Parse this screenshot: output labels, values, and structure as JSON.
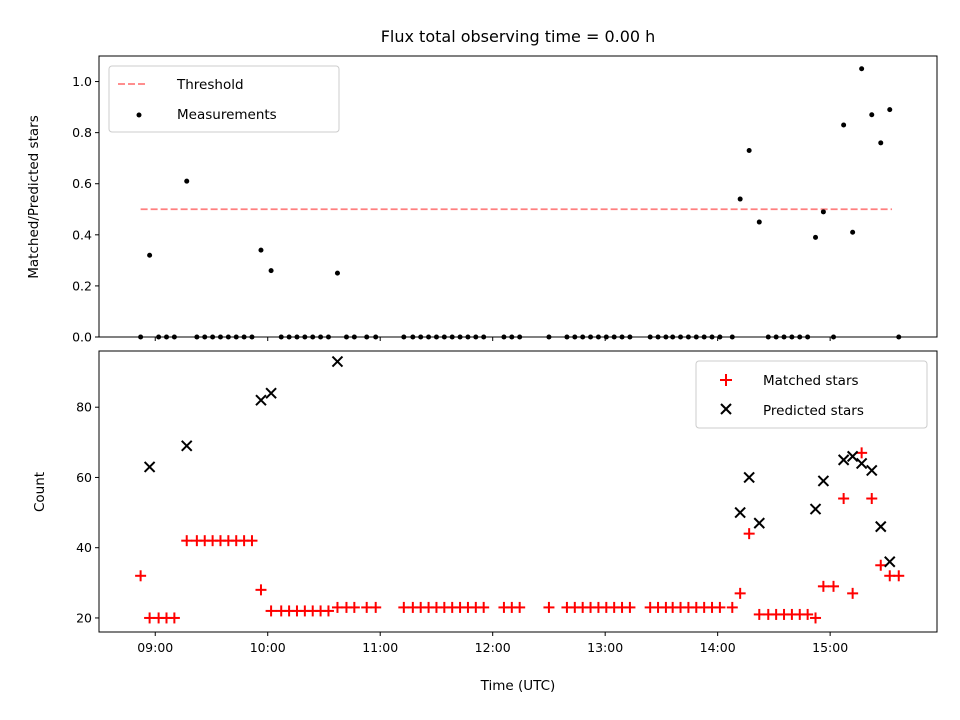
{
  "chart_data": [
    {
      "type": "scatter",
      "title": "Flux total observing time = 0.00 h",
      "xlabel": "",
      "ylabel": "Matched/Predicted stars",
      "xlim": [
        8.5,
        15.95
      ],
      "ylim": [
        0.0,
        1.1
      ],
      "yticks": [
        0.0,
        0.2,
        0.4,
        0.6,
        0.8,
        1.0
      ],
      "ytick_labels": [
        "0.0",
        "0.2",
        "0.4",
        "0.6",
        "0.8",
        "1.0"
      ],
      "grid": false,
      "legend_position": "top-left",
      "threshold": {
        "name": "Threshold",
        "value": 0.5,
        "x_range": [
          8.87,
          15.55
        ],
        "color": "#ff7f7f"
      },
      "series": [
        {
          "name": "Measurements",
          "color": "#000000",
          "x": [
            8.87,
            8.95,
            9.03,
            9.1,
            9.17,
            9.28,
            9.37,
            9.44,
            9.51,
            9.58,
            9.65,
            9.72,
            9.79,
            9.86,
            9.94,
            10.03,
            10.12,
            10.19,
            10.26,
            10.33,
            10.4,
            10.47,
            10.54,
            10.62,
            10.7,
            10.77,
            10.88,
            10.96,
            11.21,
            11.29,
            11.36,
            11.43,
            11.5,
            11.57,
            11.64,
            11.71,
            11.78,
            11.85,
            11.92,
            12.1,
            12.17,
            12.24,
            12.5,
            12.66,
            12.73,
            12.8,
            12.87,
            12.94,
            13.01,
            13.08,
            13.15,
            13.22,
            13.4,
            13.47,
            13.54,
            13.6,
            13.67,
            13.74,
            13.81,
            13.88,
            13.95,
            14.02,
            14.13,
            14.2,
            14.28,
            14.37,
            14.45,
            14.52,
            14.59,
            14.66,
            14.73,
            14.8,
            14.87,
            14.94,
            15.03,
            15.12,
            15.2,
            15.28,
            15.37,
            15.45,
            15.53,
            15.61
          ],
          "y": [
            0.0,
            0.32,
            0.0,
            0.0,
            0.0,
            0.61,
            0.0,
            0.0,
            0.0,
            0.0,
            0.0,
            0.0,
            0.0,
            0.0,
            0.34,
            0.26,
            0.0,
            0.0,
            0.0,
            0.0,
            0.0,
            0.0,
            0.0,
            0.25,
            0.0,
            0.0,
            0.0,
            0.0,
            0.0,
            0.0,
            0.0,
            0.0,
            0.0,
            0.0,
            0.0,
            0.0,
            0.0,
            0.0,
            0.0,
            0.0,
            0.0,
            0.0,
            0.0,
            0.0,
            0.0,
            0.0,
            0.0,
            0.0,
            0.0,
            0.0,
            0.0,
            0.0,
            0.0,
            0.0,
            0.0,
            0.0,
            0.0,
            0.0,
            0.0,
            0.0,
            0.0,
            0.0,
            0.0,
            0.54,
            0.73,
            0.45,
            0.0,
            0.0,
            0.0,
            0.0,
            0.0,
            0.0,
            0.39,
            0.49,
            0.0,
            0.83,
            0.41,
            1.05,
            0.87,
            0.76,
            0.89,
            0.0
          ]
        }
      ]
    },
    {
      "type": "scatter",
      "title": "",
      "xlabel": "Time (UTC)",
      "ylabel": "Count",
      "xlim": [
        8.5,
        15.95
      ],
      "ylim": [
        16.0,
        96.0
      ],
      "yticks": [
        20,
        40,
        60,
        80
      ],
      "ytick_labels": [
        "20",
        "40",
        "60",
        "80"
      ],
      "xticks": [
        9,
        10,
        11,
        12,
        13,
        14,
        15
      ],
      "xtick_labels": [
        "09:00",
        "10:00",
        "11:00",
        "12:00",
        "13:00",
        "14:00",
        "15:00"
      ],
      "grid": false,
      "legend_position": "top-right",
      "series": [
        {
          "name": "Matched stars",
          "marker": "plus",
          "color": "#ff0000",
          "x": [
            8.87,
            8.95,
            9.03,
            9.1,
            9.17,
            9.28,
            9.37,
            9.44,
            9.51,
            9.58,
            9.65,
            9.72,
            9.79,
            9.86,
            9.94,
            10.03,
            10.12,
            10.19,
            10.26,
            10.33,
            10.4,
            10.47,
            10.54,
            10.62,
            10.7,
            10.77,
            10.88,
            10.96,
            11.21,
            11.29,
            11.36,
            11.43,
            11.5,
            11.57,
            11.64,
            11.71,
            11.78,
            11.85,
            11.92,
            12.1,
            12.17,
            12.24,
            12.5,
            12.66,
            12.73,
            12.8,
            12.87,
            12.94,
            13.01,
            13.08,
            13.15,
            13.22,
            13.4,
            13.47,
            13.54,
            13.6,
            13.67,
            13.74,
            13.81,
            13.88,
            13.95,
            14.02,
            14.13,
            14.2,
            14.28,
            14.37,
            14.45,
            14.52,
            14.59,
            14.66,
            14.73,
            14.8,
            14.87,
            14.94,
            15.03,
            15.12,
            15.2,
            15.28,
            15.37,
            15.45,
            15.53,
            15.61
          ],
          "y": [
            32,
            20,
            20,
            20,
            20,
            42,
            42,
            42,
            42,
            42,
            42,
            42,
            42,
            42,
            28,
            22,
            22,
            22,
            22,
            22,
            22,
            22,
            22,
            23,
            23,
            23,
            23,
            23,
            23,
            23,
            23,
            23,
            23,
            23,
            23,
            23,
            23,
            23,
            23,
            23,
            23,
            23,
            23,
            23,
            23,
            23,
            23,
            23,
            23,
            23,
            23,
            23,
            23,
            23,
            23,
            23,
            23,
            23,
            23,
            23,
            23,
            23,
            23,
            27,
            44,
            21,
            21,
            21,
            21,
            21,
            21,
            21,
            20,
            29,
            29,
            54,
            27,
            67,
            54,
            35,
            32,
            32
          ]
        },
        {
          "name": "Predicted stars",
          "marker": "x",
          "color": "#000000",
          "x": [
            8.95,
            9.28,
            9.94,
            10.03,
            10.62,
            14.2,
            14.28,
            14.37,
            14.87,
            14.94,
            15.12,
            15.2,
            15.28,
            15.37,
            15.45,
            15.53
          ],
          "y": [
            63,
            69,
            82,
            84,
            93,
            50,
            60,
            47,
            51,
            59,
            65,
            66,
            64,
            62,
            46,
            36
          ]
        }
      ]
    }
  ]
}
